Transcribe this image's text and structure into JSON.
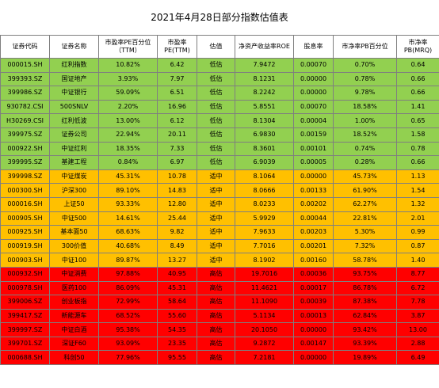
{
  "title": "2021年4月28日部分指数估值表",
  "columns": [
    {
      "label": "证券代码"
    },
    {
      "label": "证券名称"
    },
    {
      "label": "市盈率PE百分位",
      "sub": "（TTM）"
    },
    {
      "label": "市盈率",
      "sub": "PE(TTM)"
    },
    {
      "label": "估值"
    },
    {
      "label": "净资产收益率ROE"
    },
    {
      "label": "股息率"
    },
    {
      "label": "市净率PB百分位"
    },
    {
      "label": "市净率",
      "sub": "PB(MRQ)"
    }
  ],
  "colors": {
    "green": "#92d050",
    "orange": "#ffc000",
    "red": "#ff0000"
  },
  "rows": [
    {
      "band": "green",
      "cells": [
        "000015.SH",
        "红利指数",
        "10.82%",
        "6.42",
        "低估",
        "7.9472",
        "0.00070",
        "0.70%",
        "0.64"
      ]
    },
    {
      "band": "green",
      "cells": [
        "399393.SZ",
        "国证地产",
        "3.93%",
        "7.97",
        "低估",
        "8.1231",
        "0.00000",
        "0.78%",
        "0.66"
      ]
    },
    {
      "band": "green",
      "cells": [
        "399986.SZ",
        "中证银行",
        "59.09%",
        "6.51",
        "低估",
        "8.2242",
        "0.00000",
        "9.78%",
        "0.66"
      ]
    },
    {
      "band": "green",
      "cells": [
        "930782.CSI",
        "500SNLV",
        "2.20%",
        "16.96",
        "低估",
        "5.8551",
        "0.00070",
        "18.58%",
        "1.41"
      ]
    },
    {
      "band": "green",
      "cells": [
        "H30269.CSI",
        "红利低波",
        "13.00%",
        "6.12",
        "低估",
        "8.1304",
        "0.00004",
        "1.00%",
        "0.65"
      ]
    },
    {
      "band": "green",
      "cells": [
        "399975.SZ",
        "证券公司",
        "22.94%",
        "20.11",
        "低估",
        "6.9830",
        "0.00159",
        "18.52%",
        "1.58"
      ]
    },
    {
      "band": "green",
      "cells": [
        "000922.SH",
        "中证红利",
        "18.35%",
        "7.33",
        "低估",
        "8.3601",
        "0.00101",
        "0.74%",
        "0.78"
      ]
    },
    {
      "band": "green",
      "cells": [
        "399995.SZ",
        "基建工程",
        "0.84%",
        "6.97",
        "低估",
        "6.9039",
        "0.00005",
        "0.28%",
        "0.66"
      ]
    },
    {
      "band": "orange",
      "cells": [
        "399998.SZ",
        "中证煤炭",
        "45.31%",
        "10.78",
        "适中",
        "8.1064",
        "0.00000",
        "45.73%",
        "1.13"
      ]
    },
    {
      "band": "orange",
      "cells": [
        "000300.SH",
        "沪深300",
        "89.10%",
        "14.83",
        "适中",
        "8.0666",
        "0.00133",
        "61.90%",
        "1.54"
      ]
    },
    {
      "band": "orange",
      "cells": [
        "000016.SH",
        "上证50",
        "93.33%",
        "12.80",
        "适中",
        "8.0233",
        "0.00202",
        "62.27%",
        "1.32"
      ]
    },
    {
      "band": "orange",
      "cells": [
        "000905.SH",
        "中证500",
        "14.61%",
        "25.44",
        "适中",
        "5.9929",
        "0.00044",
        "22.81%",
        "2.01"
      ]
    },
    {
      "band": "orange",
      "cells": [
        "000925.SH",
        "基本面50",
        "68.63%",
        "9.82",
        "适中",
        "7.9633",
        "0.00203",
        "5.30%",
        "0.99"
      ]
    },
    {
      "band": "orange",
      "cells": [
        "000919.SH",
        "300价值",
        "40.68%",
        "8.49",
        "适中",
        "7.7016",
        "0.00201",
        "7.32%",
        "0.87"
      ]
    },
    {
      "band": "orange",
      "cells": [
        "000903.SH",
        "中证100",
        "89.87%",
        "13.27",
        "适中",
        "8.1902",
        "0.00160",
        "58.78%",
        "1.40"
      ]
    },
    {
      "band": "red",
      "cells": [
        "000932.SH",
        "中证消费",
        "97.88%",
        "40.95",
        "高估",
        "19.7016",
        "0.00036",
        "93.75%",
        "8.77"
      ]
    },
    {
      "band": "red",
      "cells": [
        "000978.SH",
        "医药100",
        "86.09%",
        "45.31",
        "高估",
        "11.4621",
        "0.00017",
        "86.78%",
        "6.72"
      ]
    },
    {
      "band": "red",
      "cells": [
        "399006.SZ",
        "创业板指",
        "72.99%",
        "58.64",
        "高估",
        "11.1090",
        "0.00039",
        "87.38%",
        "7.78"
      ]
    },
    {
      "band": "red",
      "cells": [
        "399417.SZ",
        "新能源车",
        "68.52%",
        "55.60",
        "高估",
        "5.1134",
        "0.00013",
        "62.84%",
        "3.87"
      ]
    },
    {
      "band": "red",
      "cells": [
        "399997.SZ",
        "中证白酒",
        "95.38%",
        "54.35",
        "高估",
        "20.1050",
        "0.00000",
        "93.42%",
        "13.00"
      ]
    },
    {
      "band": "red",
      "cells": [
        "399701.SZ",
        "深证F60",
        "93.09%",
        "23.35",
        "高估",
        "9.2872",
        "0.00147",
        "93.39%",
        "2.88"
      ]
    },
    {
      "band": "red",
      "cells": [
        "000688.SH",
        "科创50",
        "77.96%",
        "95.55",
        "高估",
        "7.2181",
        "0.00000",
        "19.89%",
        "6.49"
      ]
    }
  ]
}
